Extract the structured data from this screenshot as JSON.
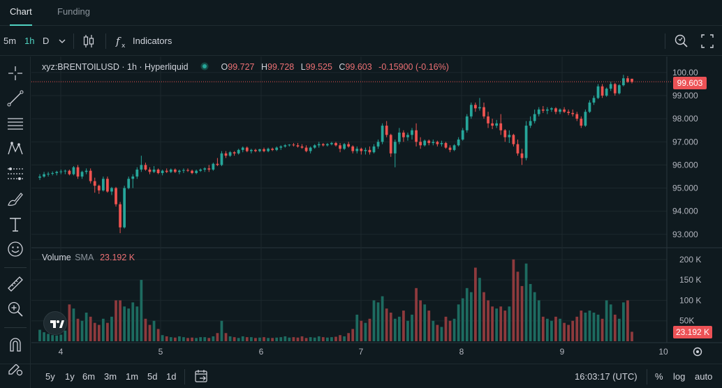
{
  "tabs": [
    {
      "label": "Chart",
      "active": true
    },
    {
      "label": "Funding",
      "active": false
    }
  ],
  "toolbar": {
    "intervals": [
      {
        "label": "5m",
        "active": false
      },
      {
        "label": "1h",
        "active": true
      },
      {
        "label": "D",
        "active": false
      }
    ],
    "indicators_label": "Indicators",
    "icons": [
      "chevron-down-icon",
      "candles-icon",
      "fx-icon",
      "search-icon",
      "fullscreen-icon"
    ]
  },
  "legend": {
    "symbol": "xyz:BRENTOILUSD · 1h · Hyperliquid",
    "open_label": "O",
    "open": "99.727",
    "high_label": "H",
    "high": "99.728",
    "low_label": "L",
    "low": "99.525",
    "close_label": "C",
    "close": "99.603",
    "change": "-0.15900 (-0.16%)"
  },
  "volume_legend": {
    "label": "Volume",
    "sma_label": "SMA",
    "sma_value": "23.192 K"
  },
  "price_axis": {
    "ticks": [
      "100.00",
      "99.000",
      "98.000",
      "97.000",
      "96.000",
      "95.000",
      "94.000",
      "93.000"
    ],
    "last_price": "99.603"
  },
  "volume_axis": {
    "ticks": [
      "200 K",
      "150 K",
      "100 K",
      "50K"
    ],
    "last_volume": "23.192 K"
  },
  "time_axis": {
    "ticks": [
      "4",
      "5",
      "6",
      "7",
      "8",
      "9",
      "10"
    ]
  },
  "bottom": {
    "ranges": [
      "5y",
      "1y",
      "6m",
      "3m",
      "1m",
      "5d",
      "1d"
    ],
    "time": "16:03:17 (UTC)",
    "percent_label": "%",
    "log_label": "log",
    "auto_label": "auto"
  },
  "colors": {
    "up": "#26a69a",
    "down": "#ef5350",
    "up_vol": "#1d6b60",
    "down_vol": "#8e3a3d",
    "accent": "#50d2c1",
    "grid": "#1c282d"
  },
  "chart_data": {
    "type": "candlestick",
    "symbol": "xyz:BRENTOILUSD",
    "interval": "1h",
    "x_axis_ticks": [
      "4",
      "5",
      "6",
      "7",
      "8",
      "9",
      "10"
    ],
    "y_range": [
      92.6,
      100.45
    ],
    "volume_range": [
      0,
      215000
    ],
    "candles": [
      [
        95.45,
        95.6,
        95.35,
        95.5,
        28000
      ],
      [
        95.5,
        95.7,
        95.45,
        95.6,
        22000
      ],
      [
        95.6,
        95.7,
        95.5,
        95.62,
        18000
      ],
      [
        95.62,
        95.72,
        95.55,
        95.65,
        15000
      ],
      [
        95.65,
        95.75,
        95.55,
        95.7,
        14000
      ],
      [
        95.7,
        95.8,
        95.6,
        95.72,
        16000
      ],
      [
        95.72,
        95.8,
        95.6,
        95.75,
        26000
      ],
      [
        95.75,
        95.8,
        95.55,
        95.6,
        90000
      ],
      [
        95.6,
        95.95,
        95.55,
        95.9,
        80000
      ],
      [
        95.9,
        96.0,
        95.4,
        95.5,
        55000
      ],
      [
        95.5,
        95.75,
        95.4,
        95.7,
        50000
      ],
      [
        95.7,
        95.85,
        95.6,
        95.75,
        70000
      ],
      [
        95.75,
        95.85,
        95.2,
        95.3,
        60000
      ],
      [
        95.3,
        95.45,
        94.8,
        95.1,
        45000
      ],
      [
        95.1,
        95.15,
        94.75,
        94.9,
        40000
      ],
      [
        94.9,
        95.5,
        94.85,
        95.4,
        55000
      ],
      [
        95.4,
        95.5,
        94.8,
        94.85,
        45000
      ],
      [
        94.85,
        95.05,
        94.7,
        95.0,
        60000
      ],
      [
        95.0,
        95.05,
        94.2,
        94.3,
        100000
      ],
      [
        94.3,
        94.4,
        93.05,
        93.3,
        100000
      ],
      [
        93.3,
        95.1,
        93.25,
        95.0,
        85000
      ],
      [
        95.0,
        95.5,
        94.95,
        95.4,
        80000
      ],
      [
        95.4,
        95.6,
        95.0,
        95.5,
        95000
      ],
      [
        95.5,
        95.9,
        95.4,
        95.8,
        85000
      ],
      [
        95.8,
        96.4,
        95.7,
        96.0,
        150000
      ],
      [
        96.0,
        96.1,
        95.75,
        95.8,
        55000
      ],
      [
        95.8,
        95.9,
        95.6,
        95.7,
        40000
      ],
      [
        95.7,
        95.95,
        95.65,
        95.8,
        50000
      ],
      [
        95.8,
        95.85,
        95.6,
        95.65,
        30000
      ],
      [
        95.65,
        95.8,
        95.55,
        95.75,
        15000
      ],
      [
        95.75,
        95.85,
        95.65,
        95.7,
        12000
      ],
      [
        95.7,
        95.85,
        95.65,
        95.8,
        10000
      ],
      [
        95.8,
        95.85,
        95.65,
        95.7,
        9000
      ],
      [
        95.7,
        95.8,
        95.6,
        95.75,
        12000
      ],
      [
        95.75,
        95.85,
        95.65,
        95.78,
        10000
      ],
      [
        95.78,
        95.85,
        95.7,
        95.75,
        8000
      ],
      [
        95.75,
        95.8,
        95.6,
        95.65,
        9000
      ],
      [
        95.65,
        95.8,
        95.6,
        95.75,
        8000
      ],
      [
        95.75,
        95.85,
        95.7,
        95.8,
        10000
      ],
      [
        95.8,
        95.9,
        95.7,
        95.85,
        10000
      ],
      [
        95.85,
        96.0,
        95.7,
        95.8,
        8000
      ],
      [
        95.8,
        96.1,
        95.75,
        96.05,
        12000
      ],
      [
        96.05,
        96.3,
        95.95,
        96.0,
        20000
      ],
      [
        96.0,
        96.6,
        95.95,
        96.5,
        50000
      ],
      [
        96.5,
        96.6,
        96.3,
        96.4,
        20000
      ],
      [
        96.4,
        96.6,
        96.35,
        96.55,
        12000
      ],
      [
        96.55,
        96.6,
        96.4,
        96.5,
        10000
      ],
      [
        96.5,
        96.7,
        96.45,
        96.65,
        8000
      ],
      [
        96.65,
        96.8,
        96.55,
        96.75,
        12000
      ],
      [
        96.75,
        96.8,
        96.55,
        96.6,
        10000
      ],
      [
        96.6,
        96.7,
        96.5,
        96.65,
        10000
      ],
      [
        96.65,
        96.7,
        96.55,
        96.6,
        8000
      ],
      [
        96.6,
        96.7,
        96.55,
        96.68,
        9000
      ],
      [
        96.68,
        96.75,
        96.55,
        96.6,
        10000
      ],
      [
        96.6,
        96.75,
        96.55,
        96.7,
        8000
      ],
      [
        96.7,
        96.75,
        96.6,
        96.65,
        8000
      ],
      [
        96.65,
        96.8,
        96.6,
        96.75,
        9000
      ],
      [
        96.75,
        96.85,
        96.65,
        96.8,
        10000
      ],
      [
        96.8,
        96.9,
        96.75,
        96.85,
        12000
      ],
      [
        96.85,
        96.9,
        96.8,
        96.88,
        9000
      ],
      [
        96.88,
        96.95,
        96.8,
        96.85,
        10000
      ],
      [
        96.85,
        96.95,
        96.75,
        96.8,
        9000
      ],
      [
        96.8,
        96.9,
        96.7,
        96.75,
        12000
      ],
      [
        96.75,
        96.85,
        96.55,
        96.6,
        8000
      ],
      [
        96.6,
        96.8,
        96.5,
        96.75,
        10000
      ],
      [
        96.75,
        96.9,
        96.7,
        96.85,
        9000
      ],
      [
        96.85,
        97.0,
        96.75,
        96.9,
        12000
      ],
      [
        96.9,
        96.95,
        96.8,
        96.85,
        10000
      ],
      [
        96.85,
        96.95,
        96.8,
        96.9,
        9000
      ],
      [
        96.9,
        97.0,
        96.85,
        96.95,
        10000
      ],
      [
        96.95,
        97.0,
        96.8,
        96.85,
        11000
      ],
      [
        96.85,
        96.95,
        96.55,
        96.7,
        15000
      ],
      [
        96.7,
        96.95,
        96.65,
        96.9,
        12000
      ],
      [
        96.9,
        97.0,
        96.75,
        96.8,
        20000
      ],
      [
        96.8,
        96.85,
        96.5,
        96.6,
        30000
      ],
      [
        96.6,
        96.8,
        96.5,
        96.7,
        65000
      ],
      [
        96.7,
        96.75,
        96.45,
        96.6,
        50000
      ],
      [
        96.6,
        96.75,
        96.45,
        96.65,
        45000
      ],
      [
        96.65,
        96.8,
        96.45,
        96.55,
        55000
      ],
      [
        96.55,
        96.9,
        96.5,
        96.8,
        100000
      ],
      [
        96.8,
        97.1,
        96.7,
        97.0,
        95000
      ],
      [
        97.0,
        97.8,
        96.9,
        97.7,
        110000
      ],
      [
        97.7,
        97.9,
        97.2,
        97.3,
        80000
      ],
      [
        97.3,
        97.35,
        96.35,
        96.5,
        70000
      ],
      [
        96.5,
        97.1,
        95.9,
        97.0,
        55000
      ],
      [
        97.0,
        97.6,
        96.9,
        97.4,
        60000
      ],
      [
        97.4,
        97.5,
        97.0,
        97.2,
        75000
      ],
      [
        97.2,
        97.4,
        97.05,
        97.3,
        50000
      ],
      [
        97.3,
        97.6,
        97.1,
        97.5,
        65000
      ],
      [
        97.5,
        97.8,
        96.8,
        97.0,
        130000
      ],
      [
        97.0,
        97.2,
        96.7,
        96.85,
        100000
      ],
      [
        96.85,
        97.1,
        96.8,
        97.05,
        90000
      ],
      [
        97.05,
        97.1,
        96.85,
        96.95,
        75000
      ],
      [
        96.95,
        97.1,
        96.85,
        97.0,
        50000
      ],
      [
        97.0,
        97.05,
        96.8,
        96.9,
        40000
      ],
      [
        96.9,
        97.05,
        96.8,
        96.95,
        35000
      ],
      [
        96.95,
        97.0,
        96.7,
        96.75,
        60000
      ],
      [
        96.75,
        96.85,
        96.55,
        96.65,
        50000
      ],
      [
        96.65,
        96.9,
        96.6,
        96.85,
        55000
      ],
      [
        96.85,
        97.2,
        96.8,
        97.1,
        90000
      ],
      [
        97.1,
        97.6,
        97.05,
        97.5,
        105000
      ],
      [
        97.5,
        98.2,
        97.4,
        98.1,
        130000
      ],
      [
        98.1,
        98.7,
        98.0,
        98.6,
        120000
      ],
      [
        98.6,
        98.7,
        98.3,
        98.45,
        180000
      ],
      [
        98.45,
        98.9,
        98.35,
        98.5,
        155000
      ],
      [
        98.5,
        98.7,
        98.0,
        98.1,
        120000
      ],
      [
        98.1,
        98.3,
        97.6,
        97.8,
        100000
      ],
      [
        97.8,
        98.0,
        97.55,
        97.7,
        85000
      ],
      [
        97.7,
        97.95,
        97.6,
        97.8,
        80000
      ],
      [
        97.8,
        98.2,
        97.3,
        97.5,
        85000
      ],
      [
        97.5,
        97.55,
        97.0,
        97.2,
        75000
      ],
      [
        97.2,
        97.5,
        96.95,
        97.3,
        85000
      ],
      [
        97.3,
        97.35,
        96.8,
        96.9,
        200000
      ],
      [
        96.9,
        97.1,
        96.4,
        96.5,
        170000
      ],
      [
        96.5,
        96.7,
        96.0,
        96.3,
        135000
      ],
      [
        96.3,
        97.9,
        96.2,
        97.7,
        190000
      ],
      [
        97.7,
        98.1,
        97.6,
        97.9,
        140000
      ],
      [
        97.9,
        98.4,
        97.8,
        98.2,
        120000
      ],
      [
        98.2,
        98.5,
        98.1,
        98.4,
        100000
      ],
      [
        98.4,
        98.55,
        98.25,
        98.35,
        60000
      ],
      [
        98.35,
        98.5,
        98.2,
        98.4,
        55000
      ],
      [
        98.4,
        98.5,
        98.3,
        98.45,
        50000
      ],
      [
        98.45,
        98.5,
        98.2,
        98.3,
        60000
      ],
      [
        98.3,
        98.45,
        98.2,
        98.4,
        55000
      ],
      [
        98.4,
        98.5,
        98.25,
        98.3,
        45000
      ],
      [
        98.3,
        98.4,
        98.15,
        98.25,
        40000
      ],
      [
        98.25,
        98.4,
        98.1,
        98.2,
        50000
      ],
      [
        98.2,
        98.3,
        97.9,
        98.0,
        60000
      ],
      [
        98.0,
        98.1,
        97.6,
        97.7,
        75000
      ],
      [
        97.7,
        98.4,
        97.65,
        98.3,
        70000
      ],
      [
        98.3,
        98.8,
        98.25,
        98.7,
        75000
      ],
      [
        98.7,
        99.0,
        98.6,
        98.9,
        70000
      ],
      [
        98.9,
        99.5,
        98.85,
        99.4,
        65000
      ],
      [
        99.4,
        99.5,
        98.9,
        99.0,
        55000
      ],
      [
        99.0,
        99.35,
        98.95,
        99.3,
        100000
      ],
      [
        99.3,
        99.6,
        99.2,
        99.5,
        90000
      ],
      [
        99.5,
        99.55,
        99.0,
        99.1,
        65000
      ],
      [
        99.1,
        99.5,
        99.05,
        99.45,
        55000
      ],
      [
        99.45,
        99.9,
        99.4,
        99.75,
        95000
      ],
      [
        99.75,
        99.85,
        99.55,
        99.6,
        100000
      ],
      [
        99.73,
        99.73,
        99.53,
        99.6,
        23192
      ]
    ]
  }
}
